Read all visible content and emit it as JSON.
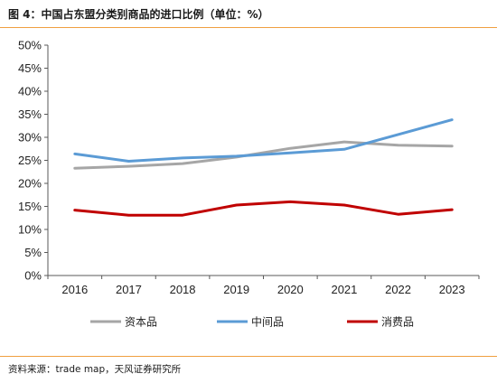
{
  "header": {
    "title": "图 4：中国占东盟分类别商品的进口比例（单位：%）"
  },
  "footer": {
    "source": "资料来源：trade map，天风证券研究所"
  },
  "chart_data": {
    "type": "line",
    "title": "",
    "xlabel": "",
    "ylabel": "",
    "x": [
      "2016",
      "2017",
      "2018",
      "2019",
      "2020",
      "2021",
      "2022",
      "2023"
    ],
    "ylim": [
      0,
      50
    ],
    "y_ticks": [
      0,
      5,
      10,
      15,
      20,
      25,
      30,
      35,
      40,
      45,
      50
    ],
    "y_tick_labels": [
      "0%",
      "5%",
      "10%",
      "15%",
      "20%",
      "25%",
      "30%",
      "35%",
      "40%",
      "45%",
      "50%"
    ],
    "grid": false,
    "legend_position": "bottom",
    "series": [
      {
        "name": "资本品",
        "color": "#a6a6a6",
        "values": [
          23.3,
          23.7,
          24.3,
          25.7,
          27.6,
          29.0,
          28.3,
          28.1
        ]
      },
      {
        "name": "中间品",
        "color": "#5b9bd5",
        "values": [
          26.4,
          24.8,
          25.5,
          25.9,
          26.6,
          27.4,
          30.6,
          33.8
        ]
      },
      {
        "name": "消费品",
        "color": "#c00000",
        "values": [
          14.2,
          13.1,
          13.1,
          15.3,
          16.0,
          15.3,
          13.3,
          14.3
        ]
      }
    ]
  }
}
